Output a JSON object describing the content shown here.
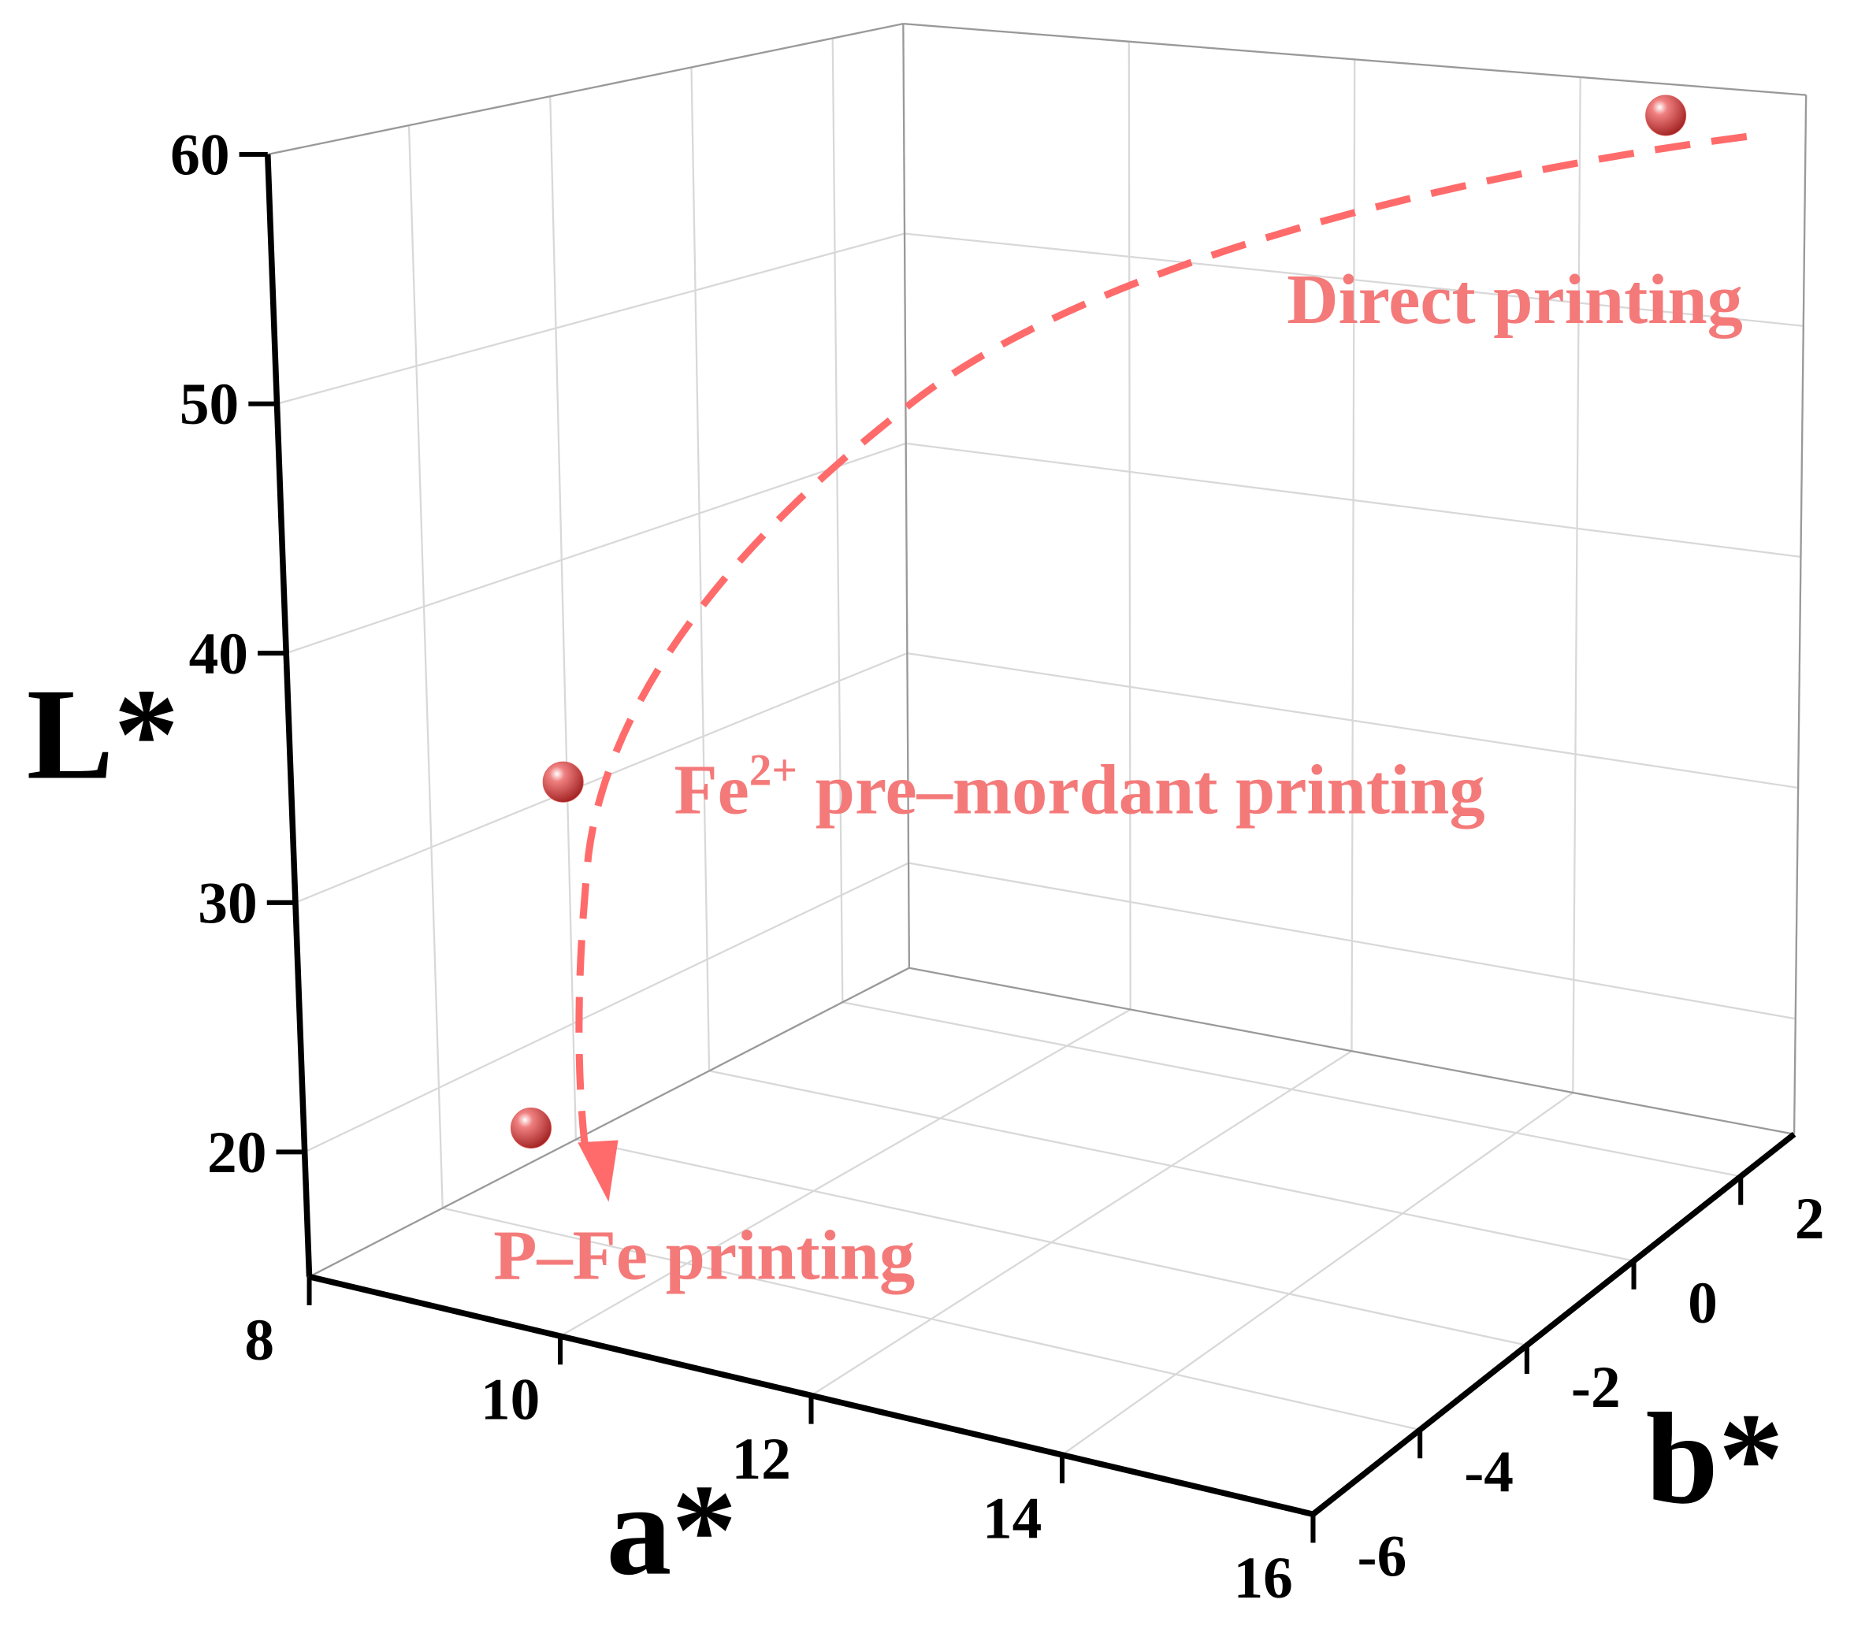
{
  "chart_data": {
    "type": "scatter3d",
    "xlabel": "a*",
    "ylabel": "b*",
    "zlabel": "L*",
    "series": [
      {
        "color": "#e05a5a",
        "x": [
          14.9,
          10.1,
          9.8
        ],
        "y": [
          2.7,
          -6,
          -6
        ],
        "z": [
          59,
          37,
          23
        ]
      }
    ],
    "xlim": [
      8,
      16
    ],
    "xticks": [
      8,
      10,
      12,
      14,
      16
    ],
    "ylim": [
      -6,
      3
    ],
    "yticks": [
      -6,
      -4,
      -2,
      0,
      2
    ],
    "zlim": [
      15,
      60
    ],
    "zticks": [
      20,
      30,
      40,
      50,
      60
    ],
    "grid": true,
    "annotations": [
      {
        "text": "Direct printing"
      },
      {
        "text": "Fe",
        "sup": "2+",
        "rest": " pre–mordant printing"
      },
      {
        "text": "P–Fe printing"
      }
    ]
  }
}
